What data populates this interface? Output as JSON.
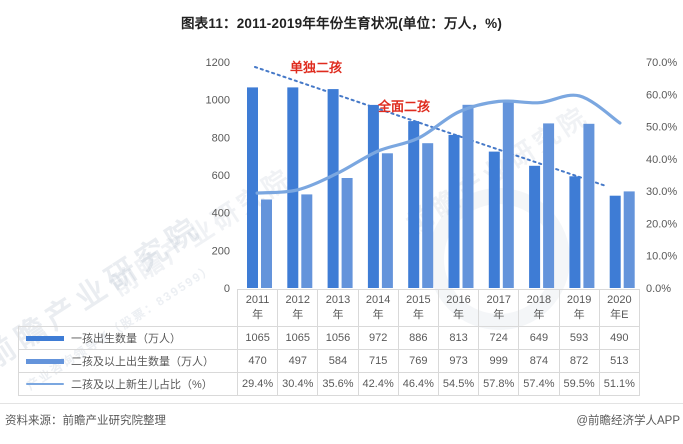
{
  "title": "图表11：2011-2019年年份生育状况(单位：万人，%)",
  "colors": {
    "bar_first_child": "#3e7cd5",
    "bar_second_child": "#6494db",
    "percent_line": "#7ba7e0",
    "trendline": "#4679c8",
    "annotation_red": "#df2b1e",
    "axis_text": "#595959",
    "table_border": "#d9d9d9"
  },
  "chart_data": {
    "type": "bar+line combo",
    "categories": [
      "2011年",
      "2012年",
      "2013年",
      "2014年",
      "2015年",
      "2016年",
      "2017年",
      "2018年",
      "2019年",
      "2020年E"
    ],
    "series": [
      {
        "name": "一孩出生数量（万人）",
        "type": "bar",
        "axis": "left",
        "values": [
          1065,
          1065,
          1056,
          972,
          886,
          813,
          724,
          649,
          593,
          490
        ]
      },
      {
        "name": "二孩及以上出生数量（万人）",
        "type": "bar",
        "axis": "left",
        "values": [
          470,
          497,
          584,
          715,
          769,
          973,
          999,
          874,
          872,
          513
        ]
      },
      {
        "name": "二孩及以上新生儿占比（%）",
        "type": "line",
        "axis": "right",
        "values": [
          29.4,
          30.4,
          35.6,
          42.4,
          46.4,
          54.5,
          57.8,
          57.4,
          59.5,
          51.1
        ]
      }
    ],
    "left_axis": {
      "min": 0,
      "max": 1200,
      "step": 200
    },
    "right_axis": {
      "min": 0,
      "max": 70,
      "step": 10,
      "format": "percent_one_decimal"
    },
    "annotations": [
      {
        "text": "单独二孩"
      },
      {
        "text": "全面二孩"
      }
    ],
    "trendline": {
      "style": "dotted",
      "direction": "downward"
    },
    "grid": false,
    "legend_position": "table-left"
  },
  "table": {
    "years_line1": [
      "2011",
      "2012",
      "2013",
      "2014",
      "2015",
      "2016",
      "2017",
      "2018",
      "2019",
      "2020"
    ],
    "years_line2": [
      "年",
      "年",
      "年",
      "年",
      "年",
      "年",
      "年",
      "年",
      "年",
      "年E"
    ],
    "rows": [
      {
        "label": "一孩出生数量（万人）",
        "swatch": "bar-dark",
        "values": [
          "1065",
          "1065",
          "1056",
          "972",
          "886",
          "813",
          "724",
          "649",
          "593",
          "490"
        ]
      },
      {
        "label": "二孩及以上出生数量（万人）",
        "swatch": "bar-light",
        "values": [
          "470",
          "497",
          "584",
          "715",
          "769",
          "973",
          "999",
          "874",
          "872",
          "513"
        ]
      },
      {
        "label": "二孩及以上新生儿占比（%）",
        "swatch": "line",
        "values": [
          "29.4%",
          "30.4%",
          "35.6%",
          "42.4%",
          "46.4%",
          "54.5%",
          "57.8%",
          "57.4%",
          "59.5%",
          "51.1%"
        ]
      }
    ]
  },
  "footer": {
    "source": "资料来源：前瞻产业研究院整理",
    "credit": "@前瞻经济学人APP"
  },
  "watermark": {
    "main": "前瞻产业研究院",
    "sub": "产业咨询领导者（股票：839599）"
  }
}
